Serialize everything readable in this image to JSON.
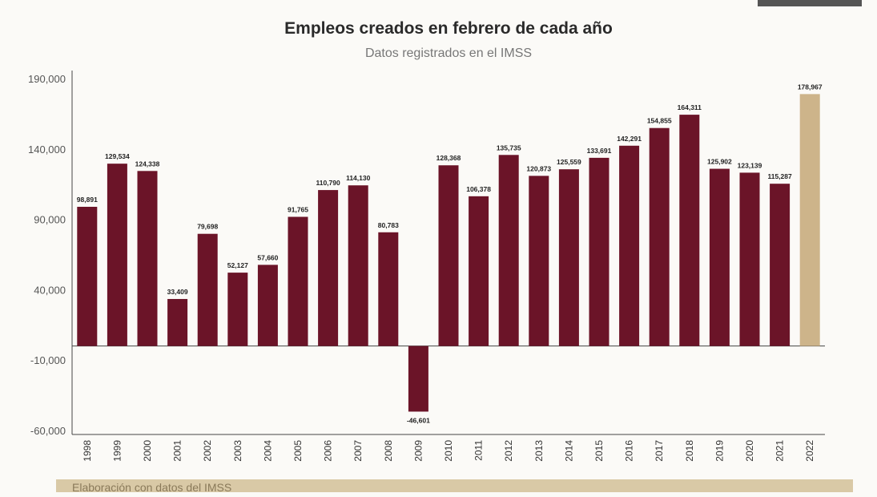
{
  "chart_data": {
    "type": "bar",
    "title": "Empleos creados en febrero de cada año",
    "subtitle": "Datos registrados en el IMSS",
    "categories": [
      "1998",
      "1999",
      "2000",
      "2001",
      "2002",
      "2003",
      "2004",
      "2005",
      "2006",
      "2007",
      "2008",
      "2009",
      "2010",
      "2011",
      "2012",
      "2013",
      "2014",
      "2015",
      "2016",
      "2017",
      "2018",
      "2019",
      "2020",
      "2021",
      "2022"
    ],
    "values": [
      98891,
      129534,
      124338,
      33409,
      79698,
      52127,
      57660,
      91765,
      110790,
      114130,
      80783,
      -46601,
      128368,
      106378,
      135735,
      120873,
      125559,
      133691,
      142291,
      154855,
      164311,
      125902,
      123139,
      115287,
      178967
    ],
    "data_labels": [
      "98,891",
      "129,534",
      "124,338",
      "33,409",
      "79,698",
      "52,127",
      "57,660",
      "91,765",
      "110,790",
      "114,130",
      "80,783",
      "-46,601",
      "128,368",
      "106,378",
      "135,735",
      "120,873",
      "125,559",
      "133,691",
      "142,291",
      "154,855",
      "164,311",
      "125,902",
      "123,139",
      "115,287",
      "178,967"
    ],
    "yticks": [
      "190,000",
      "140,000",
      "90,000",
      "40,000",
      "-10,000",
      "-60,000"
    ],
    "ytick_values": [
      190000,
      140000,
      90000,
      40000,
      -10000,
      -60000
    ],
    "ylim": [
      -60000,
      190000
    ],
    "xlabel": "",
    "ylabel": "",
    "grid": false,
    "colors": {
      "bar": "#6b1428",
      "highlight": "#cdb48a"
    },
    "highlight_category": "2022"
  },
  "footer": "Elaboración con datos del IMSS"
}
